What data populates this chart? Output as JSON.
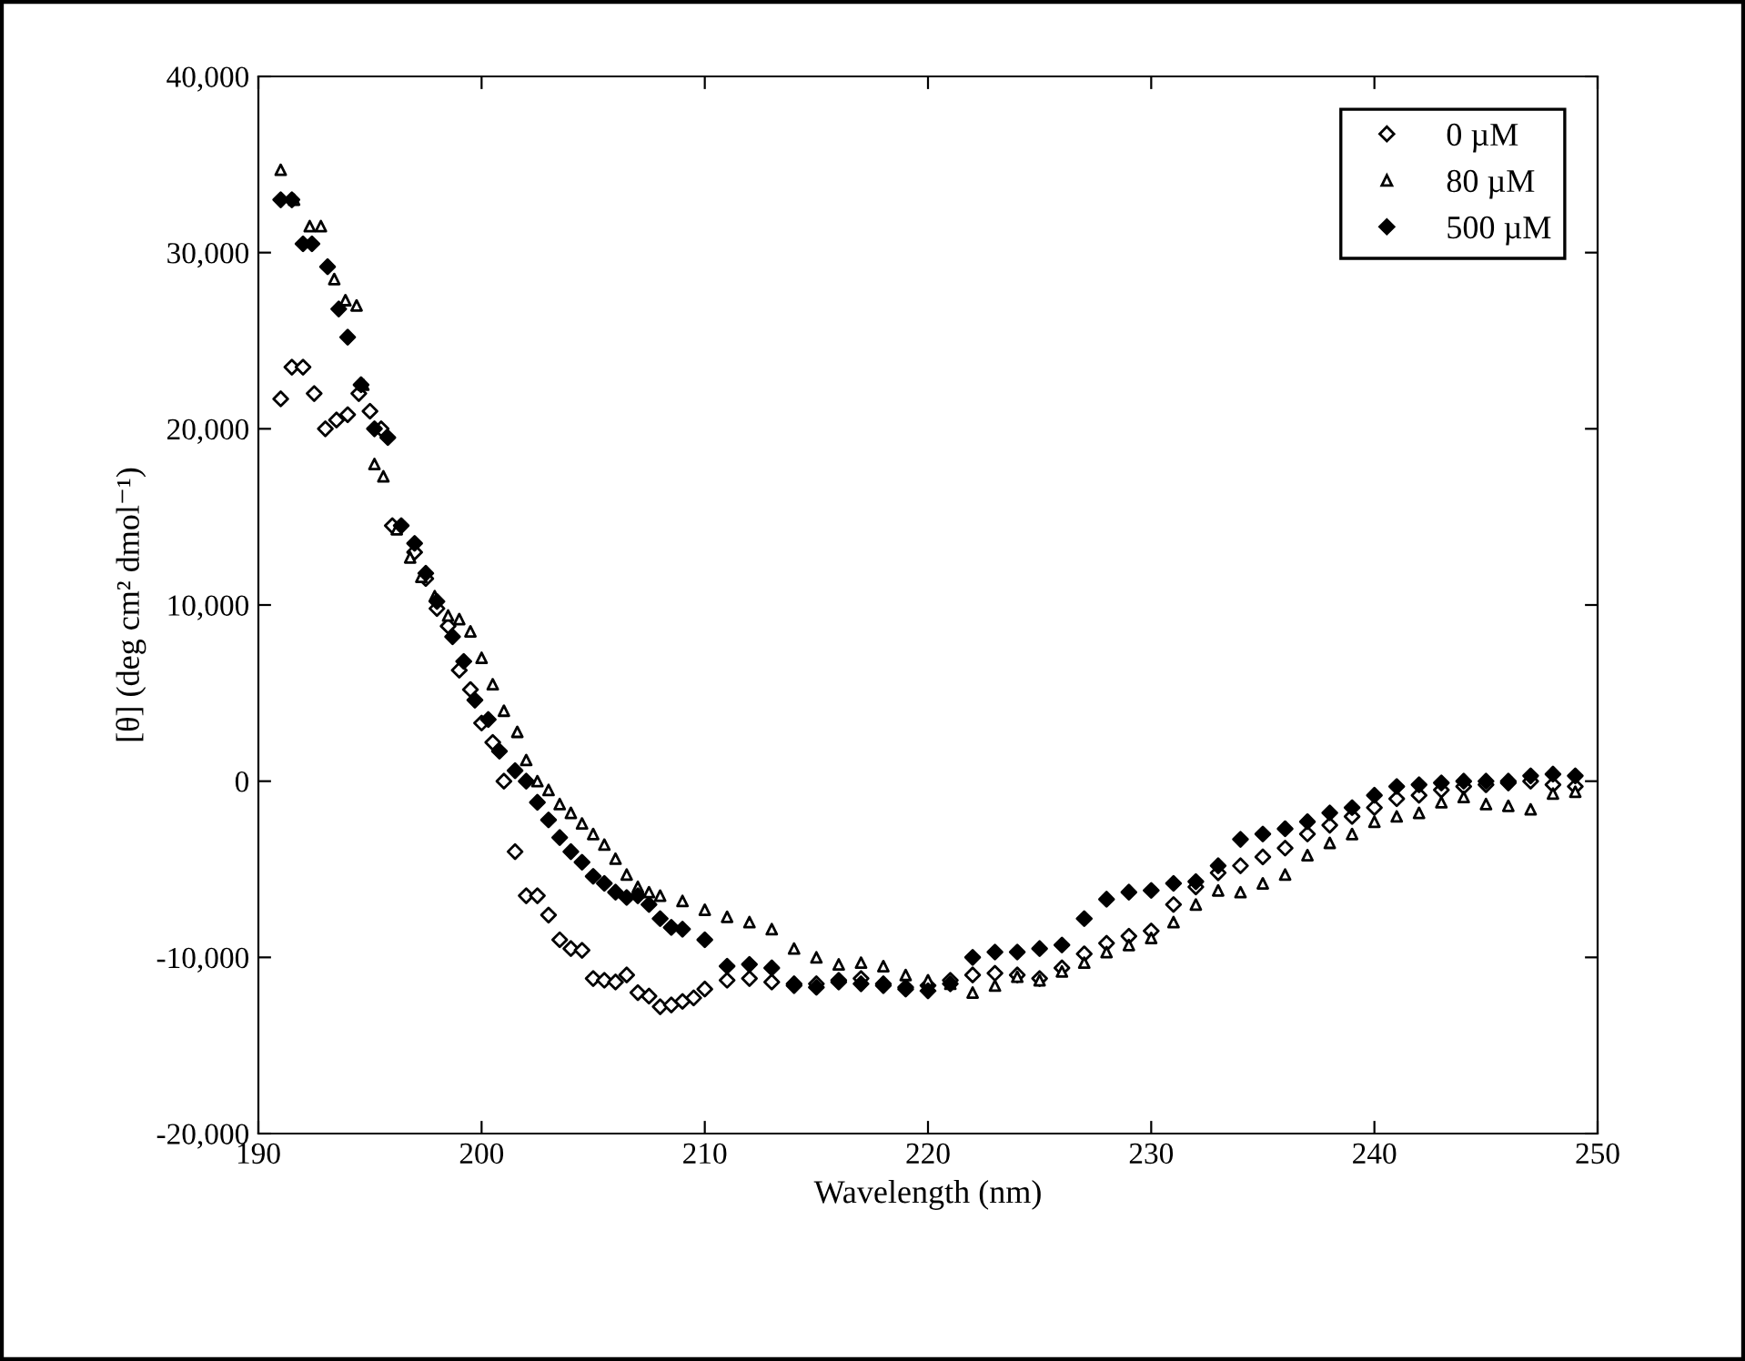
{
  "chart_data": {
    "type": "scatter",
    "xlabel": "Wavelength (nm)",
    "ylabel": "[θ] (deg cm² dmol⁻¹)",
    "xlim": [
      190,
      250
    ],
    "xticks": [
      190,
      200,
      210,
      220,
      230,
      240,
      250
    ],
    "ylim": [
      -20000,
      40000
    ],
    "yticks": [
      {
        "value": -20000,
        "label": "-20,000"
      },
      {
        "value": -10000,
        "label": "-10,000"
      },
      0,
      {
        "value": 10000,
        "label": "10,000"
      },
      {
        "value": 20000,
        "label": "20,000"
      },
      {
        "value": 30000,
        "label": "30,000"
      },
      {
        "value": 40000,
        "label": "40,000"
      }
    ],
    "grid": false,
    "legend": "top right",
    "series": [
      {
        "name": "0 µM",
        "color": "#ffffff",
        "marker": "diamond",
        "x": [
          191,
          191.5,
          192,
          192.5,
          193,
          193.5,
          194,
          194.5,
          195,
          195.5,
          196,
          197,
          197.5,
          198,
          198.5,
          199,
          199.5,
          200,
          200.5,
          201,
          201.5,
          202,
          202.5,
          203,
          203.5,
          204,
          204.5,
          205,
          205.5,
          206,
          206.5,
          207,
          207.5,
          208,
          208.5,
          209,
          209.5,
          210,
          211,
          212,
          213,
          214,
          215,
          216,
          217,
          218,
          219,
          220,
          221,
          222,
          223,
          224,
          225,
          226,
          227,
          228,
          229,
          230,
          231,
          232,
          233,
          234,
          235,
          236,
          237,
          238,
          239,
          240,
          241,
          242,
          243,
          244,
          245,
          246,
          247,
          248,
          249
        ],
        "values": [
          21700,
          23500,
          23500,
          22000,
          20000,
          20500,
          20800,
          22000,
          21000,
          20000,
          14500,
          13000,
          11500,
          9800,
          8800,
          6300,
          5200,
          3300,
          2200,
          0,
          -4000,
          -6500,
          -6500,
          -7600,
          -9000,
          -9500,
          -9600,
          -11200,
          -11300,
          -11400,
          -11000,
          -12000,
          -12200,
          -12800,
          -12700,
          -12500,
          -12300,
          -11800,
          -11300,
          -11200,
          -11400,
          -11600,
          -11500,
          -11400,
          -11200,
          -11500,
          -11700,
          -11600,
          -11300,
          -11000,
          -10900,
          -11000,
          -11200,
          -10600,
          -9800,
          -9200,
          -8800,
          -8500,
          -7000,
          -6000,
          -5200,
          -4800,
          -4300,
          -3800,
          -3000,
          -2500,
          -2000,
          -1500,
          -1000,
          -800,
          -500,
          -300,
          -200,
          -100,
          0,
          -200,
          -300
        ]
      },
      {
        "name": "80 µM",
        "color": "#ffffff",
        "marker": "triangle",
        "x": [
          191,
          191.6,
          192.3,
          192.8,
          193.4,
          193.9,
          194.4,
          194.7,
          195.2,
          195.6,
          196.2,
          196.8,
          197.3,
          197.9,
          198.5,
          199,
          199.5,
          200,
          200.5,
          201,
          201.6,
          202,
          202.5,
          203,
          203.5,
          204,
          204.5,
          205,
          205.5,
          206,
          206.5,
          207,
          207.5,
          208,
          209,
          210,
          211,
          212,
          213,
          214,
          215,
          216,
          217,
          218,
          219,
          220,
          221,
          222,
          223,
          224,
          225,
          226,
          227,
          228,
          229,
          230,
          231,
          232,
          233,
          234,
          235,
          236,
          237,
          238,
          239,
          240,
          241,
          242,
          243,
          244,
          245,
          246,
          247,
          248,
          249
        ],
        "values": [
          34700,
          33000,
          31500,
          31500,
          28500,
          27300,
          27000,
          22500,
          18000,
          17300,
          14300,
          12700,
          11600,
          10500,
          9400,
          9200,
          8500,
          7000,
          5500,
          4000,
          2800,
          1200,
          0,
          -500,
          -1300,
          -1800,
          -2400,
          -3000,
          -3600,
          -4400,
          -5300,
          -6000,
          -6300,
          -6500,
          -6800,
          -7300,
          -7700,
          -8000,
          -8400,
          -9500,
          -10000,
          -10400,
          -10300,
          -10500,
          -11000,
          -11300,
          -11500,
          -12000,
          -11600,
          -11100,
          -11300,
          -10800,
          -10300,
          -9700,
          -9300,
          -8900,
          -8000,
          -7000,
          -6200,
          -6300,
          -5800,
          -5300,
          -4200,
          -3500,
          -3000,
          -2300,
          -2000,
          -1800,
          -1200,
          -900,
          -1300,
          -1400,
          -1600,
          -700,
          -600
        ]
      },
      {
        "name": "500 µM",
        "color": "#000000",
        "marker": "diamond",
        "x": [
          191,
          191.5,
          192,
          192.4,
          193.1,
          193.6,
          194,
          194.6,
          195.2,
          195.8,
          196.4,
          197,
          197.5,
          198,
          198.7,
          199.2,
          199.7,
          200.3,
          200.8,
          201.5,
          202,
          202.5,
          203,
          203.5,
          204,
          204.5,
          205,
          205.5,
          206,
          206.5,
          207,
          207.5,
          208,
          208.5,
          209,
          210,
          211,
          212,
          213,
          214,
          215,
          216,
          217,
          218,
          219,
          220,
          221,
          222,
          223,
          224,
          225,
          226,
          227,
          228,
          229,
          230,
          231,
          232,
          233,
          234,
          235,
          236,
          237,
          238,
          239,
          240,
          241,
          242,
          243,
          244,
          245,
          246,
          247,
          248,
          249
        ],
        "values": [
          33000,
          33000,
          30500,
          30500,
          29200,
          26800,
          25200,
          22500,
          20000,
          19500,
          14500,
          13500,
          11800,
          10200,
          8200,
          6800,
          4600,
          3500,
          1700,
          600,
          0,
          -1200,
          -2200,
          -3200,
          -4000,
          -4600,
          -5400,
          -5800,
          -6300,
          -6600,
          -6500,
          -7000,
          -7800,
          -8300,
          -8400,
          -9000,
          -10500,
          -10400,
          -10600,
          -11500,
          -11700,
          -11300,
          -11500,
          -11600,
          -11800,
          -11900,
          -11500,
          -10000,
          -9700,
          -9700,
          -9500,
          -9300,
          -7800,
          -6700,
          -6300,
          -6200,
          -5800,
          -5700,
          -4800,
          -3300,
          -3000,
          -2700,
          -2300,
          -1800,
          -1500,
          -800,
          -300,
          -200,
          -100,
          0,
          0,
          0,
          300,
          400,
          300
        ]
      }
    ]
  }
}
